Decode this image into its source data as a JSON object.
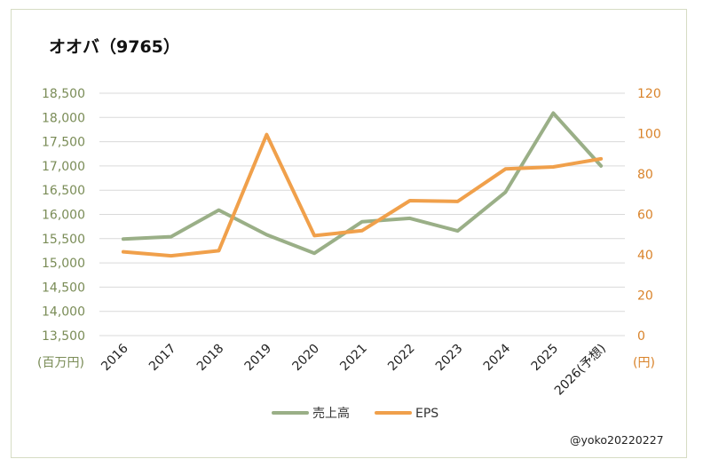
{
  "header": {
    "title": "オオバ（9765）"
  },
  "footer": {
    "credit": "@yoko20220227"
  },
  "chart_data": {
    "type": "line",
    "title": "オオバ（9765）",
    "categories": [
      "2016",
      "2017",
      "2018",
      "2019",
      "2020",
      "2021",
      "2022",
      "2023",
      "2024",
      "2025",
      "2026(予想)"
    ],
    "series": [
      {
        "name": "売上高",
        "axis": "left",
        "color": "#9aaf87",
        "values": [
          15490,
          15540,
          16090,
          15580,
          15200,
          15850,
          15920,
          15660,
          16460,
          18090,
          17000
        ]
      },
      {
        "name": "EPS",
        "axis": "right",
        "color": "#f0a04b",
        "values": [
          41.5,
          39.5,
          42,
          99.5,
          49.5,
          52,
          66.8,
          66.4,
          82.5,
          83.5,
          87.5
        ]
      }
    ],
    "y_left": {
      "unit_label": "(百万円)",
      "ylim": [
        13500,
        18500
      ],
      "ticks": [
        13500,
        14000,
        14500,
        15000,
        15500,
        16000,
        16500,
        17000,
        17500,
        18000,
        18500
      ],
      "tick_labels": [
        "13,500",
        "14,000",
        "14,500",
        "15,000",
        "15,500",
        "16,000",
        "16,500",
        "17,000",
        "17,500",
        "18,000",
        "18,500"
      ]
    },
    "y_right": {
      "unit_label": "(円)",
      "ylim": [
        0,
        120
      ],
      "ticks": [
        0,
        20,
        40,
        60,
        80,
        100,
        120
      ],
      "tick_labels": [
        "0",
        "20",
        "40",
        "60",
        "80",
        "100",
        "120"
      ]
    },
    "legend": {
      "position": "bottom"
    },
    "grid": true
  }
}
